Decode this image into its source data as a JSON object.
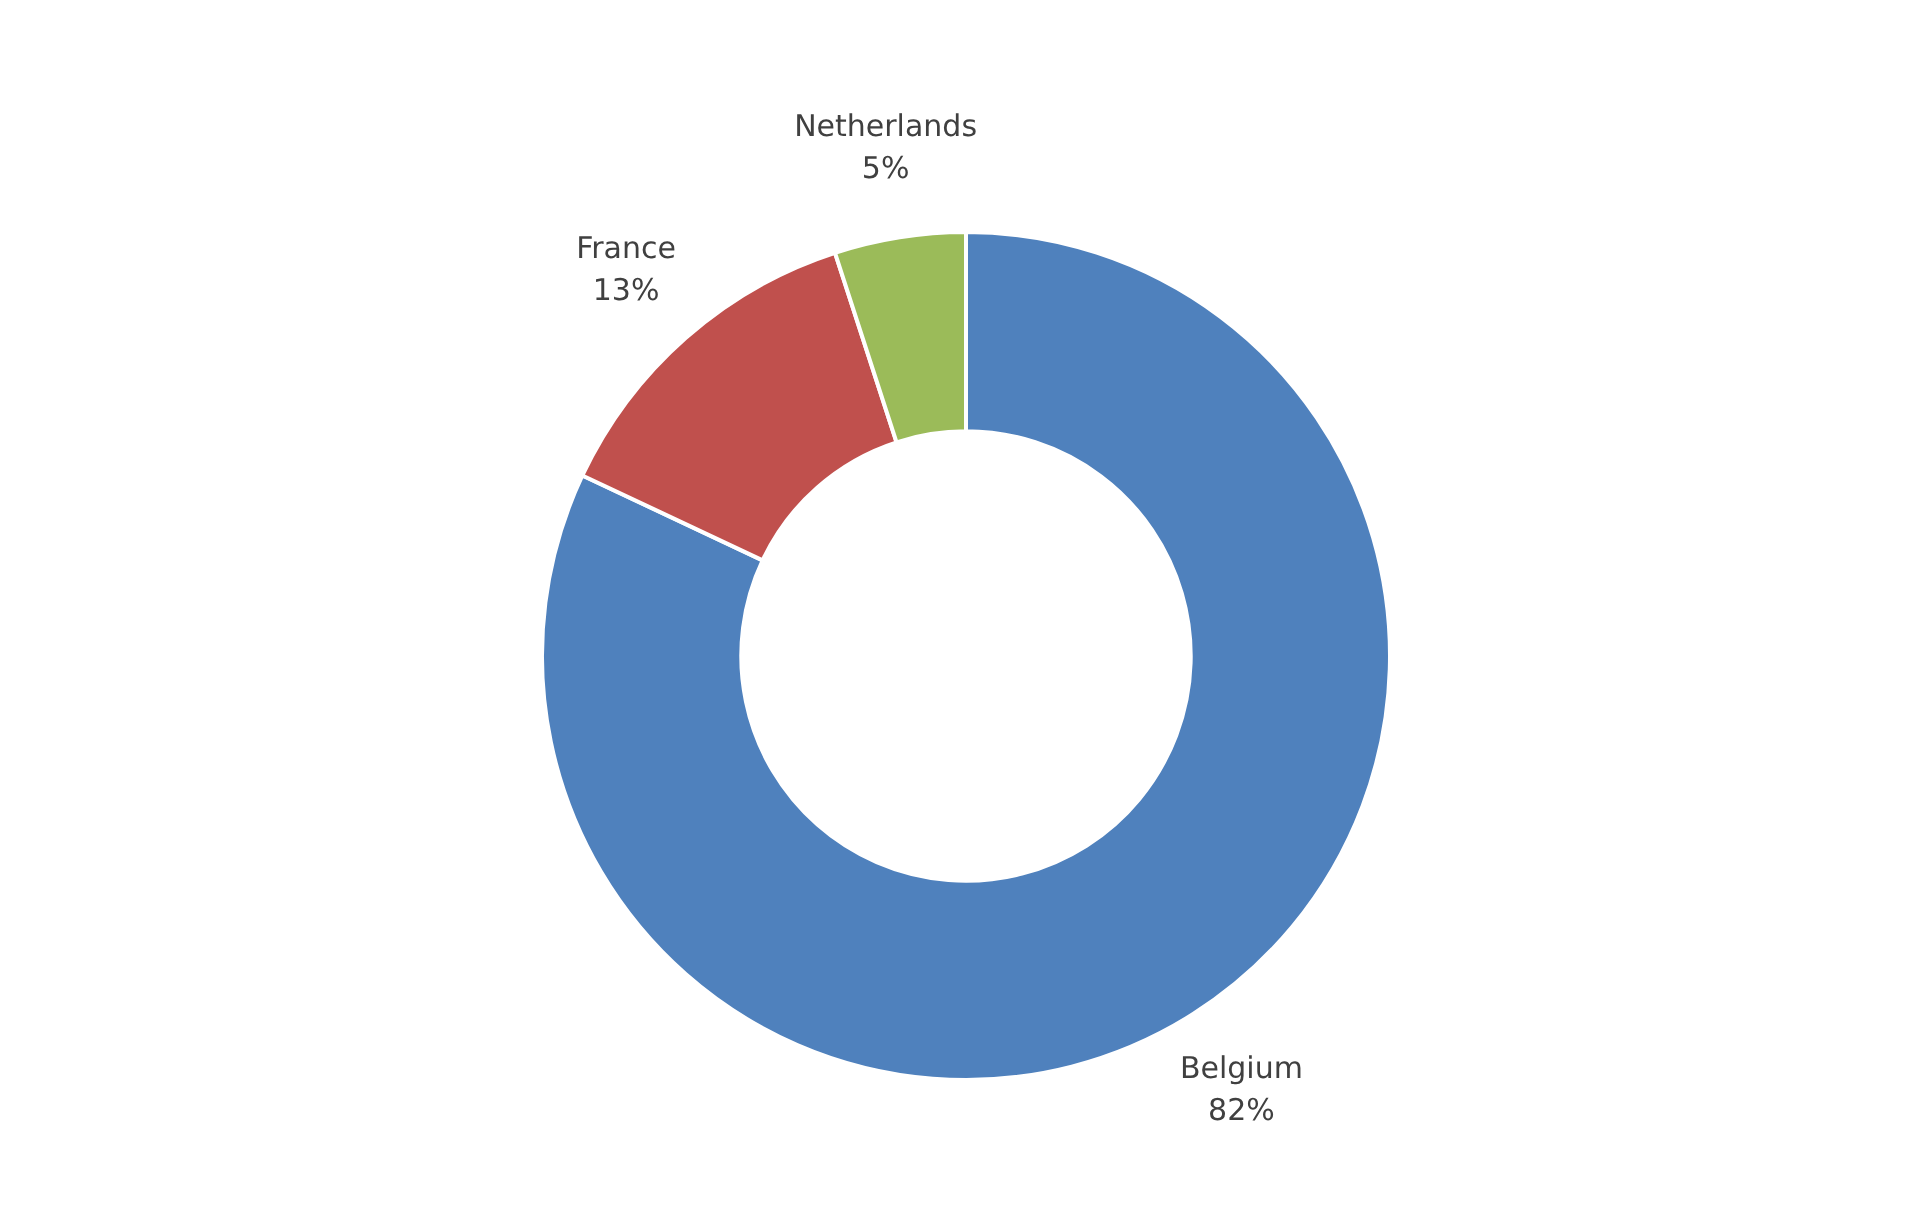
{
  "chart_data": {
    "type": "donut",
    "categories": [
      "Belgium",
      "France",
      "Netherlands"
    ],
    "values": [
      82,
      13,
      5
    ],
    "colors": [
      "#4f81bd",
      "#c0504d",
      "#9bbb59"
    ],
    "value_labels": [
      "82%",
      "13%",
      "5%"
    ],
    "legend": false
  }
}
